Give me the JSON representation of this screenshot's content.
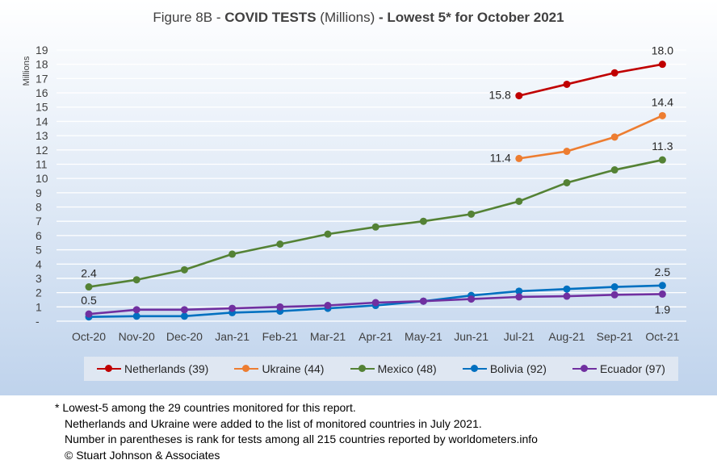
{
  "title": {
    "prefix": "Figure 8B - ",
    "bold1": "COVID TESTS",
    "mid": " (Millions) ",
    "bold2": "- Lowest 5* for October 2021"
  },
  "chart_data": {
    "type": "line",
    "categories": [
      "Oct-20",
      "Nov-20",
      "Dec-20",
      "Jan-21",
      "Feb-21",
      "Mar-21",
      "Apr-21",
      "May-21",
      "Jun-21",
      "Jul-21",
      "Aug-21",
      "Sep-21",
      "Oct-21"
    ],
    "ylabel": "Millions",
    "ylim": [
      0,
      19
    ],
    "yticks": [
      "-",
      "1",
      "2",
      "3",
      "4",
      "5",
      "6",
      "7",
      "8",
      "9",
      "10",
      "11",
      "12",
      "13",
      "14",
      "15",
      "16",
      "17",
      "18",
      "19"
    ],
    "grid": true,
    "legend_position": "bottom",
    "series": [
      {
        "name": "Netherlands (39)",
        "color": "#c00000",
        "values": [
          null,
          null,
          null,
          null,
          null,
          null,
          null,
          null,
          null,
          15.8,
          16.6,
          17.4,
          18.0
        ]
      },
      {
        "name": "Ukraine (44)",
        "color": "#ed7d31",
        "values": [
          null,
          null,
          null,
          null,
          null,
          null,
          null,
          null,
          null,
          11.4,
          11.9,
          12.9,
          14.4
        ]
      },
      {
        "name": "Mexico (48)",
        "color": "#548235",
        "values": [
          2.4,
          2.9,
          3.6,
          4.7,
          5.4,
          6.1,
          6.6,
          7.0,
          7.5,
          8.4,
          9.7,
          10.6,
          11.3
        ]
      },
      {
        "name": "Bolivia (92)",
        "color": "#0070c0",
        "values": [
          0.3,
          0.35,
          0.35,
          0.6,
          0.7,
          0.9,
          1.1,
          1.4,
          1.8,
          2.1,
          2.25,
          2.4,
          2.5
        ]
      },
      {
        "name": "Ecuador (97)",
        "color": "#7030a0",
        "values": [
          0.5,
          0.8,
          0.8,
          0.9,
          1.0,
          1.1,
          1.3,
          1.4,
          1.55,
          1.7,
          1.75,
          1.85,
          1.9
        ]
      }
    ],
    "data_labels": [
      "18.0",
      "15.8",
      "14.4",
      "11.4",
      "11.3",
      "2.4",
      "2.5",
      "0.5",
      "1.9"
    ]
  },
  "notes": [
    "* Lowest-5 among the 29 countries monitored for this report.",
    "Netherlands and Ukraine were added to the list of monitored countries in July 2021.",
    "Number in parentheses is rank for tests among all 215 countries reported by worldometers.info",
    "© Stuart Johnson & Associates"
  ]
}
